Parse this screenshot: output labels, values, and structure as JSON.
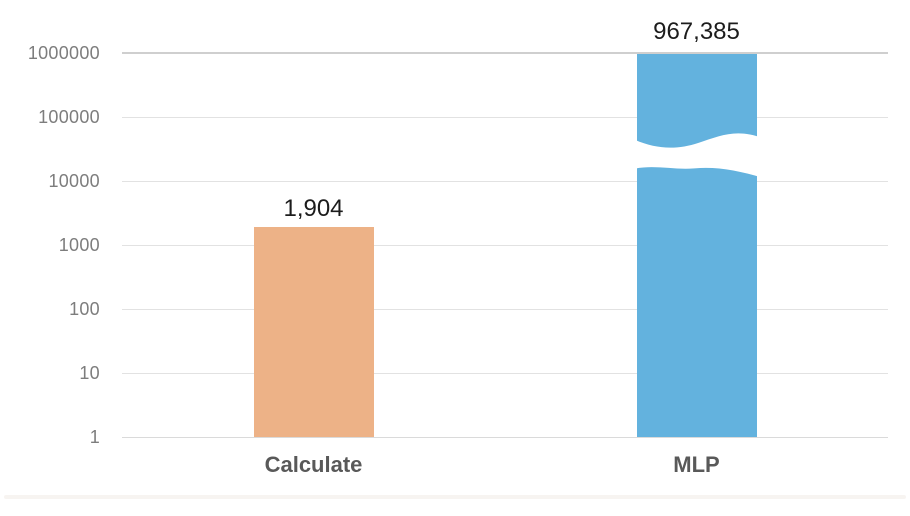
{
  "figure": {
    "background": "#ffffff",
    "accent_colors": {
      "bar_calculate": "#EDB287",
      "bar_mlp": "#63B2DE",
      "tick_text": "#7d7d7d",
      "category_text": "#595959",
      "value_text": "#1c1c1c",
      "gridline": "#e2e2e2",
      "gridline_top": "#cfcfcf"
    }
  },
  "chart_data": {
    "type": "bar",
    "scale": "log10",
    "title": "",
    "xlabel": "",
    "ylabel": "",
    "categories": [
      "Calculate",
      "MLP"
    ],
    "values": [
      1904,
      967385
    ],
    "value_labels": [
      "1,904",
      "967,385"
    ],
    "bar_colors": [
      "#EDB287",
      "#63B2DE"
    ],
    "y_ticks": [
      1,
      10,
      100,
      1000,
      10000,
      100000,
      1000000
    ],
    "y_tick_labels": [
      "1",
      "10",
      "100",
      "1000",
      "10000",
      "100000",
      "1000000"
    ],
    "ylim": [
      1,
      1000000
    ],
    "grid": true,
    "legend": "none",
    "axis_break": {
      "series_index": 1,
      "between": [
        11000,
        49000
      ],
      "style": "white-wave"
    }
  }
}
